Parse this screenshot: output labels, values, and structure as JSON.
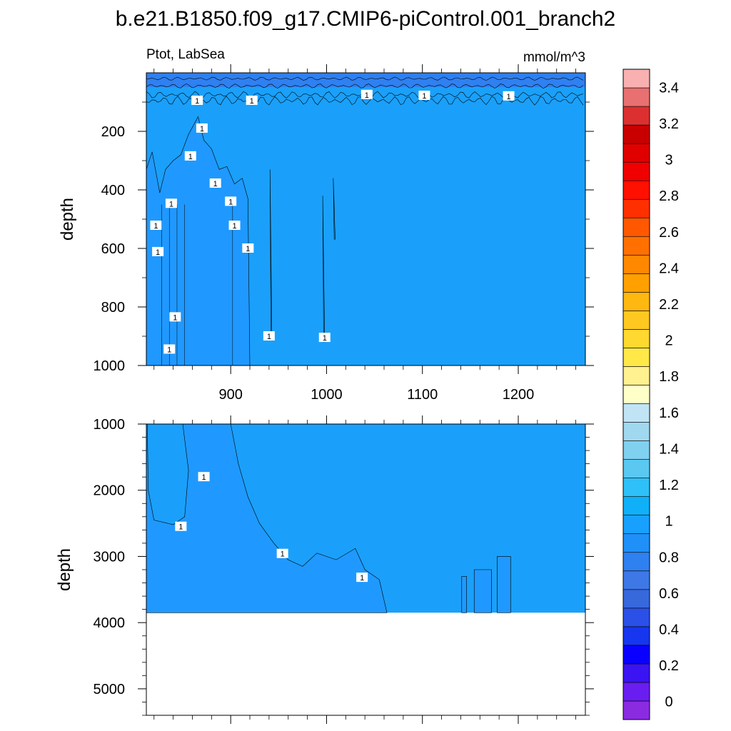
{
  "chart_data": {
    "type": "contour",
    "title": "b.e21.B1850.f09_g17.CMIP6-piControl.001_branch2",
    "left_string": "Ptot, LabSea",
    "right_string": "mmol/m^3",
    "panels": [
      {
        "name": "upper",
        "xlim": [
          812,
          1270
        ],
        "ylim": [
          1000,
          0
        ],
        "xticks": [
          900,
          1000,
          1100,
          1200
        ],
        "yticks": [
          200,
          400,
          600,
          800,
          1000
        ],
        "ylabel": "depth",
        "contour_label": "1"
      },
      {
        "name": "lower",
        "xlim": [
          812,
          1270
        ],
        "ylim": [
          5400,
          1000
        ],
        "yticks": [
          1000,
          2000,
          3000,
          4000,
          5000
        ],
        "ylabel": "depth",
        "contour_label": "1",
        "bottom_depth": 3850
      }
    ],
    "colorbar": {
      "levels": [
        0,
        0.1,
        0.2,
        0.3,
        0.4,
        0.5,
        0.6,
        0.7,
        0.8,
        0.9,
        1.0,
        1.1,
        1.2,
        1.3,
        1.4,
        1.5,
        1.6,
        1.7,
        1.8,
        1.9,
        2.0,
        2.1,
        2.2,
        2.3,
        2.4,
        2.5,
        2.6,
        2.7,
        2.8,
        2.9,
        3.0,
        3.1,
        3.2,
        3.3,
        3.4,
        3.5
      ],
      "colors": [
        "#8a2be2",
        "#6a1df0",
        "#3a14f2",
        "#0a00ff",
        "#1636f0",
        "#2a50e8",
        "#3768dc",
        "#3d78e6",
        "#2f80f0",
        "#1f90f8",
        "#18a0ff",
        "#0fb0f8",
        "#2ec0f8",
        "#5ac8f0",
        "#80d0f0",
        "#a0d8f0",
        "#c0e4f4",
        "#ffffc8",
        "#fff090",
        "#ffe848",
        "#ffd830",
        "#ffc820",
        "#ffb810",
        "#ffa000",
        "#ff8800",
        "#ff7000",
        "#ff5800",
        "#ff3000",
        "#ff1000",
        "#f00000",
        "#e00000",
        "#c80000",
        "#dc3030",
        "#e87070",
        "#f8b0b0"
      ],
      "tick_labels": [
        "0",
        "0.2",
        "0.4",
        "0.6",
        "0.8",
        "1",
        "1.2",
        "1.4",
        "1.6",
        "1.8",
        "2",
        "2.2",
        "2.4",
        "2.6",
        "2.8",
        "3",
        "3.2",
        "3.4"
      ]
    },
    "field_colors": {
      "surface": "#2f80f0",
      "interior_low": "#1f99ff",
      "interior_high": "#1aa0fa"
    }
  }
}
